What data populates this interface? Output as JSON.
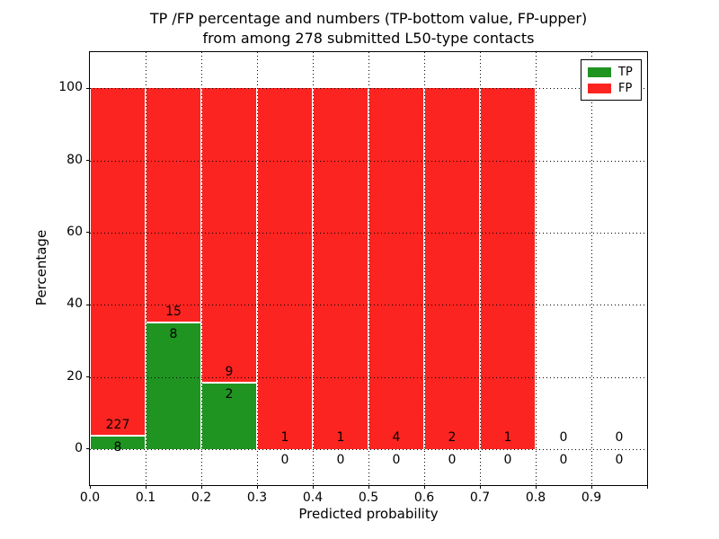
{
  "title": {
    "line1": "TP /FP percentage and numbers (TP-bottom value, FP-upper)",
    "line2": "from among 278 submitted L50-type contacts"
  },
  "chart_data": {
    "type": "bar",
    "stacked": true,
    "title": "TP /FP percentage and numbers (TP-bottom value, FP-upper) from among 278 submitted L50-type contacts",
    "xlabel": "Predicted probability",
    "ylabel": "Percentage",
    "xlim": [
      0.0,
      1.0
    ],
    "ylim": [
      -10,
      110
    ],
    "x_ticks": [
      "0.0",
      "0.1",
      "0.2",
      "0.3",
      "0.4",
      "0.5",
      "0.6",
      "0.7",
      "0.8",
      "0.9"
    ],
    "y_ticks": [
      "0",
      "20",
      "40",
      "60",
      "80",
      "100"
    ],
    "grid": "dotted",
    "legend_position": "upper-right",
    "total_contacts": 278,
    "colors": {
      "tp": "#1f9421",
      "fp": "#fc2420"
    },
    "legend": [
      {
        "label": "TP",
        "series": "tp"
      },
      {
        "label": "FP",
        "series": "fp"
      }
    ],
    "bins": [
      {
        "range": [
          0.0,
          0.1
        ],
        "tp_count": 8,
        "fp_count": 227,
        "tp_pct": 3.4,
        "fp_pct": 96.6,
        "has_bar": true
      },
      {
        "range": [
          0.1,
          0.2
        ],
        "tp_count": 8,
        "fp_count": 15,
        "tp_pct": 34.8,
        "fp_pct": 65.2,
        "has_bar": true
      },
      {
        "range": [
          0.2,
          0.3
        ],
        "tp_count": 2,
        "fp_count": 9,
        "tp_pct": 18.2,
        "fp_pct": 81.8,
        "has_bar": true
      },
      {
        "range": [
          0.3,
          0.4
        ],
        "tp_count": 0,
        "fp_count": 1,
        "tp_pct": 0,
        "fp_pct": 100,
        "has_bar": true
      },
      {
        "range": [
          0.4,
          0.5
        ],
        "tp_count": 0,
        "fp_count": 1,
        "tp_pct": 0,
        "fp_pct": 100,
        "has_bar": true
      },
      {
        "range": [
          0.5,
          0.6
        ],
        "tp_count": 0,
        "fp_count": 4,
        "tp_pct": 0,
        "fp_pct": 100,
        "has_bar": true
      },
      {
        "range": [
          0.6,
          0.7
        ],
        "tp_count": 0,
        "fp_count": 2,
        "tp_pct": 0,
        "fp_pct": 100,
        "has_bar": true
      },
      {
        "range": [
          0.7,
          0.8
        ],
        "tp_count": 0,
        "fp_count": 1,
        "tp_pct": 0,
        "fp_pct": 100,
        "has_bar": true
      },
      {
        "range": [
          0.8,
          0.9
        ],
        "tp_count": 0,
        "fp_count": 0,
        "tp_pct": 0,
        "fp_pct": 0,
        "has_bar": false
      },
      {
        "range": [
          0.9,
          1.0
        ],
        "tp_count": 0,
        "fp_count": 0,
        "tp_pct": 0,
        "fp_pct": 0,
        "has_bar": false
      }
    ]
  }
}
